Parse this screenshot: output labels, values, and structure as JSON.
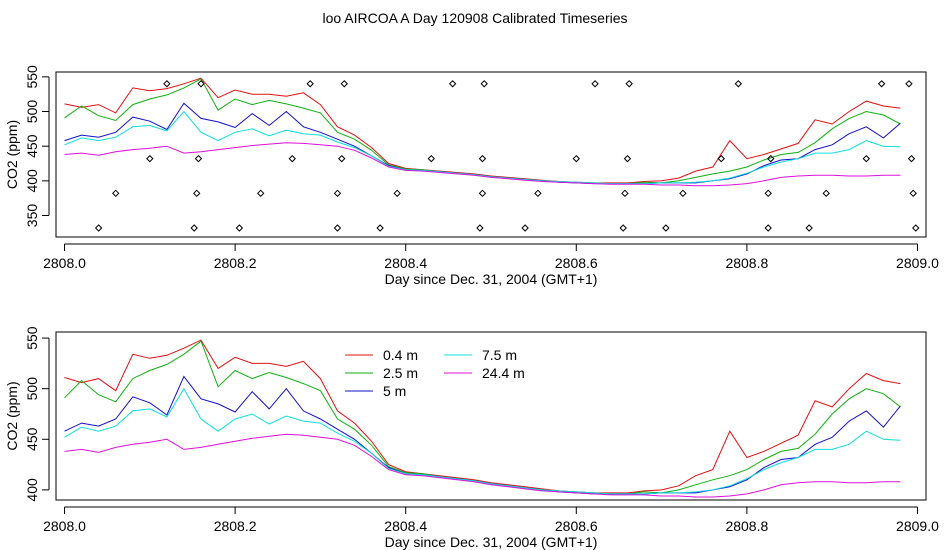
{
  "title": "loo AIRCOA A  Day 120908  Calibrated Timeseries",
  "colors": {
    "0.4 m": "#e01010",
    "2.5 m": "#10b010",
    "5 m": "#1010cc",
    "7.5 m": "#10dddd",
    "24.4 m": "#dd10dd",
    "points": "#000000",
    "axis": "#000000"
  },
  "chart_data": [
    {
      "type": "line",
      "xlabel": "Day since Dec. 31, 2004 (GMT+1)",
      "ylabel": "CO2 (ppm)",
      "xlim": [
        2807.99,
        2809.01
      ],
      "ylim": [
        319,
        557
      ],
      "x_ticks": [
        "2808.0",
        "2808.2",
        "2808.4",
        "2808.6",
        "2808.8",
        "2809.0"
      ],
      "y_ticks": [
        "350",
        "400",
        "450",
        "500",
        "550"
      ],
      "legend": false,
      "series_source": "shared",
      "scatter": {
        "name": "",
        "x": [
          2808.04,
          2808.06,
          2808.1,
          2808.12,
          2808.152,
          2808.155,
          2808.157,
          2808.16,
          2808.205,
          2808.23,
          2808.267,
          2808.288,
          2808.32,
          2808.32,
          2808.325,
          2808.328,
          2808.37,
          2808.39,
          2808.43,
          2808.455,
          2808.487,
          2808.49,
          2808.49,
          2808.492,
          2808.54,
          2808.555,
          2808.6,
          2808.622,
          2808.655,
          2808.657,
          2808.66,
          2808.662,
          2808.705,
          2808.725,
          2808.77,
          2808.79,
          2808.825,
          2808.825,
          2808.828,
          2808.873,
          2808.893,
          2808.94,
          2808.958,
          2808.99,
          2808.993,
          2808.995,
          2808.998
        ],
        "y": [
          332,
          382,
          432,
          540,
          332,
          382,
          432,
          540,
          332,
          382,
          432,
          540,
          332,
          382,
          432,
          540,
          332,
          382,
          432,
          540,
          332,
          382,
          432,
          540,
          332,
          382,
          432,
          540,
          332,
          382,
          432,
          540,
          332,
          382,
          432,
          540,
          332,
          382,
          432,
          332,
          382,
          432,
          540,
          540,
          432,
          382,
          332
        ]
      }
    },
    {
      "type": "line",
      "xlabel": "Day since Dec. 31, 2004 (GMT+1)",
      "ylabel": "CO2 (ppm)",
      "xlim": [
        2807.99,
        2809.01
      ],
      "ylim": [
        390,
        556
      ],
      "x_ticks": [
        "2808.0",
        "2808.2",
        "2808.4",
        "2808.6",
        "2808.8",
        "2809.0"
      ],
      "y_ticks": [
        "400",
        "450",
        "500",
        "550"
      ],
      "legend": true,
      "legend_position": "top-center",
      "series_source": "shared"
    }
  ],
  "series": [
    {
      "name": "0.4 m",
      "x": [
        2808.0,
        2808.02,
        2808.04,
        2808.06,
        2808.08,
        2808.1,
        2808.12,
        2808.14,
        2808.16,
        2808.18,
        2808.2,
        2808.22,
        2808.24,
        2808.26,
        2808.28,
        2808.3,
        2808.32,
        2808.34,
        2808.36,
        2808.38,
        2808.4,
        2808.42,
        2808.44,
        2808.46,
        2808.48,
        2808.5,
        2808.52,
        2808.54,
        2808.56,
        2808.58,
        2808.6,
        2808.62,
        2808.64,
        2808.66,
        2808.68,
        2808.7,
        2808.72,
        2808.74,
        2808.76,
        2808.78,
        2808.8,
        2808.82,
        2808.84,
        2808.86,
        2808.88,
        2808.9,
        2808.92,
        2808.94,
        2808.96,
        2808.98
      ],
      "y": [
        511,
        506,
        510,
        498,
        534,
        530,
        533,
        540,
        548,
        520,
        531,
        525,
        525,
        522,
        527,
        510,
        478,
        466,
        448,
        425,
        418,
        416,
        414,
        412,
        410,
        407,
        405,
        403,
        401,
        399,
        398,
        397,
        397,
        397,
        399,
        400,
        404,
        414,
        420,
        458,
        432,
        438,
        446,
        454,
        488,
        482,
        500,
        515,
        508,
        505
      ]
    },
    {
      "name": "2.5 m",
      "x": [
        2808.0,
        2808.02,
        2808.04,
        2808.06,
        2808.08,
        2808.1,
        2808.12,
        2808.14,
        2808.16,
        2808.18,
        2808.2,
        2808.22,
        2808.24,
        2808.26,
        2808.28,
        2808.3,
        2808.32,
        2808.34,
        2808.36,
        2808.38,
        2808.4,
        2808.42,
        2808.44,
        2808.46,
        2808.48,
        2808.5,
        2808.52,
        2808.54,
        2808.56,
        2808.58,
        2808.6,
        2808.62,
        2808.64,
        2808.66,
        2808.68,
        2808.7,
        2808.72,
        2808.74,
        2808.76,
        2808.78,
        2808.8,
        2808.82,
        2808.84,
        2808.86,
        2808.88,
        2808.9,
        2808.92,
        2808.94,
        2808.96,
        2808.98
      ],
      "y": [
        491,
        508,
        494,
        487,
        510,
        518,
        524,
        534,
        547,
        502,
        518,
        510,
        516,
        511,
        505,
        498,
        470,
        460,
        444,
        423,
        417,
        416,
        413,
        411,
        409,
        406,
        404,
        402,
        400,
        398,
        398,
        397,
        396,
        396,
        398,
        397,
        400,
        405,
        410,
        414,
        420,
        430,
        438,
        441,
        455,
        475,
        490,
        500,
        495,
        482
      ]
    },
    {
      "name": "5 m",
      "x": [
        2808.0,
        2808.02,
        2808.04,
        2808.06,
        2808.08,
        2808.1,
        2808.12,
        2808.14,
        2808.16,
        2808.18,
        2808.2,
        2808.22,
        2808.24,
        2808.26,
        2808.28,
        2808.3,
        2808.32,
        2808.34,
        2808.36,
        2808.38,
        2808.4,
        2808.42,
        2808.44,
        2808.46,
        2808.48,
        2808.5,
        2808.52,
        2808.54,
        2808.56,
        2808.58,
        2808.6,
        2808.62,
        2808.64,
        2808.66,
        2808.68,
        2808.7,
        2808.72,
        2808.74,
        2808.76,
        2808.78,
        2808.8,
        2808.82,
        2808.84,
        2808.86,
        2808.88,
        2808.9,
        2808.92,
        2808.94,
        2808.96,
        2808.98
      ],
      "y": [
        458,
        466,
        463,
        470,
        492,
        486,
        474,
        512,
        490,
        485,
        477,
        497,
        480,
        500,
        478,
        470,
        460,
        450,
        436,
        422,
        416,
        415,
        413,
        411,
        409,
        406,
        404,
        402,
        400,
        398,
        397,
        396,
        396,
        396,
        396,
        397,
        397,
        397,
        400,
        403,
        410,
        422,
        430,
        432,
        445,
        452,
        468,
        478,
        462,
        483
      ]
    },
    {
      "name": "7.5 m",
      "x": [
        2808.0,
        2808.02,
        2808.04,
        2808.06,
        2808.08,
        2808.1,
        2808.12,
        2808.14,
        2808.16,
        2808.18,
        2808.2,
        2808.22,
        2808.24,
        2808.26,
        2808.28,
        2808.3,
        2808.32,
        2808.34,
        2808.36,
        2808.38,
        2808.4,
        2808.42,
        2808.44,
        2808.46,
        2808.48,
        2808.5,
        2808.52,
        2808.54,
        2808.56,
        2808.58,
        2808.6,
        2808.62,
        2808.64,
        2808.66,
        2808.68,
        2808.7,
        2808.72,
        2808.74,
        2808.76,
        2808.78,
        2808.8,
        2808.82,
        2808.84,
        2808.86,
        2808.88,
        2808.9,
        2808.92,
        2808.94,
        2808.96,
        2808.98
      ],
      "y": [
        452,
        462,
        458,
        463,
        478,
        480,
        472,
        500,
        470,
        458,
        470,
        475,
        465,
        473,
        468,
        466,
        456,
        448,
        436,
        421,
        416,
        415,
        413,
        411,
        409,
        406,
        404,
        402,
        400,
        399,
        398,
        397,
        396,
        396,
        396,
        397,
        397,
        398,
        400,
        404,
        411,
        420,
        427,
        432,
        440,
        440,
        445,
        458,
        450,
        449
      ]
    },
    {
      "name": "24.4 m",
      "x": [
        2808.0,
        2808.02,
        2808.04,
        2808.06,
        2808.08,
        2808.1,
        2808.12,
        2808.14,
        2808.16,
        2808.18,
        2808.2,
        2808.22,
        2808.24,
        2808.26,
        2808.28,
        2808.3,
        2808.32,
        2808.34,
        2808.36,
        2808.38,
        2808.4,
        2808.42,
        2808.44,
        2808.46,
        2808.48,
        2808.5,
        2808.52,
        2808.54,
        2808.56,
        2808.58,
        2808.6,
        2808.62,
        2808.64,
        2808.66,
        2808.68,
        2808.7,
        2808.72,
        2808.74,
        2808.76,
        2808.78,
        2808.8,
        2808.82,
        2808.84,
        2808.86,
        2808.88,
        2808.9,
        2808.92,
        2808.94,
        2808.96,
        2808.98
      ],
      "y": [
        438,
        440,
        437,
        442,
        445,
        447,
        450,
        440,
        442,
        445,
        448,
        451,
        453,
        455,
        454,
        452,
        450,
        444,
        433,
        420,
        415,
        414,
        412,
        410,
        408,
        405,
        403,
        401,
        399,
        398,
        397,
        396,
        395,
        395,
        395,
        394,
        394,
        393,
        393,
        394,
        396,
        400,
        405,
        407,
        408,
        408,
        407,
        407,
        408,
        408
      ]
    }
  ]
}
